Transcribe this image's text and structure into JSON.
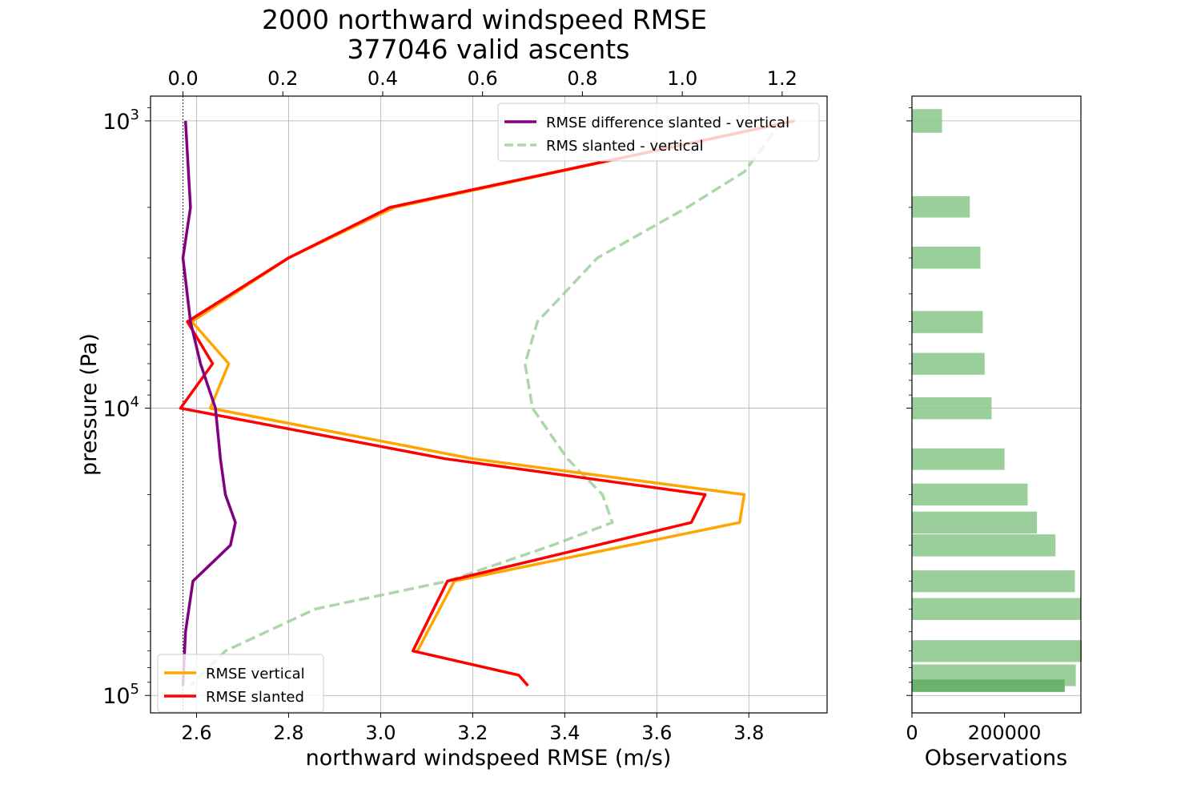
{
  "chart_data": [
    {
      "type": "line",
      "title": [
        "2000 northward windspeed RMSE",
        "377046 valid ascents"
      ],
      "xlabel": "northward windspeed RMSE (m/s)",
      "ylabel": "pressure (Pa)",
      "xlim": [
        2.5,
        3.97
      ],
      "xticks": [
        2.6,
        2.8,
        3.0,
        3.2,
        3.4,
        3.6,
        3.8
      ],
      "xtick_labels": [
        "2.6",
        "2.8",
        "3.0",
        "3.2",
        "3.4",
        "3.6",
        "3.8"
      ],
      "top_xlim": [
        -0.065,
        1.29
      ],
      "top_xticks": [
        0.0,
        0.2,
        0.4,
        0.6,
        0.8,
        1.0,
        1.2
      ],
      "top_xtick_labels": [
        "0.0",
        "0.2",
        "0.4",
        "0.6",
        "0.8",
        "1.0",
        "1.2"
      ],
      "ylim": [
        115000,
        820
      ],
      "yscale": "log",
      "yinvert": true,
      "yticks": [
        1000,
        10000,
        100000
      ],
      "ytick_labels": [
        {
          "base": "10",
          "exp": "3"
        },
        {
          "base": "10",
          "exp": "4"
        },
        {
          "base": "10",
          "exp": "5"
        }
      ],
      "grid": true,
      "zero_line_top_axis": 0.0,
      "series": [
        {
          "name": "RMSE vertical",
          "axis": "bottom",
          "color": "#ffa500",
          "style": "solid",
          "x": [
            3.895,
            3.03,
            2.8,
            2.59,
            2.67,
            2.63,
            3.2,
            3.79,
            3.78,
            3.16,
            3.08
          ],
          "y": [
            1000,
            2000,
            3000,
            5000,
            7000,
            10000,
            15000,
            20000,
            25000,
            40000,
            70000
          ]
        },
        {
          "name": "RMSE slanted",
          "axis": "bottom",
          "color": "#ff0000",
          "style": "solid",
          "x": [
            3.9,
            3.02,
            2.8,
            2.58,
            2.635,
            2.565,
            3.14,
            3.705,
            3.675,
            3.145,
            3.07,
            3.3,
            3.32
          ],
          "y": [
            1000,
            2000,
            3000,
            5000,
            7000,
            10000,
            15000,
            20000,
            25000,
            40000,
            70000,
            85000,
            92500
          ]
        },
        {
          "name": "RMSE difference slanted - vertical",
          "axis": "top",
          "color": "#800080",
          "style": "solid",
          "x": [
            0.005,
            0.015,
            0.0,
            0.015,
            0.035,
            0.065,
            0.075,
            0.085,
            0.105,
            0.095,
            0.02,
            0.005,
            0.0
          ],
          "y": [
            1000,
            2000,
            3000,
            5000,
            7000,
            10000,
            15000,
            20000,
            25000,
            30000,
            40000,
            60000,
            92500
          ]
        },
        {
          "name": "RMS slanted - vertical",
          "axis": "top",
          "color": "#8fc98f",
          "style": "dashed",
          "x": [
            1.2,
            1.125,
            1.01,
            0.83,
            0.71,
            0.685,
            0.7,
            0.77,
            0.84,
            0.86,
            0.74,
            0.53,
            0.265,
            0.085,
            0.015
          ],
          "y": [
            1000,
            1500,
            2000,
            3000,
            5000,
            7000,
            10000,
            15000,
            20000,
            25000,
            30000,
            40000,
            50000,
            70000,
            92500
          ]
        }
      ],
      "legends": [
        {
          "placement": "upper-right",
          "entries": [
            "RMSE difference slanted - vertical",
            "RMS slanted - vertical"
          ]
        },
        {
          "placement": "lower-left",
          "entries": [
            "RMSE vertical",
            "RMSE slanted"
          ]
        }
      ]
    },
    {
      "type": "bar",
      "orientation": "horizontal",
      "xlabel": "Observations",
      "xlim": [
        0,
        365000
      ],
      "xticks": [
        0,
        200000
      ],
      "xtick_labels": [
        "0",
        "200000"
      ],
      "yscale": "log",
      "ylim": [
        115000,
        820
      ],
      "color": "#8fc98f",
      "bars": [
        {
          "y": 1000,
          "y_lo": 910,
          "y_hi": 1100,
          "value": 65000
        },
        {
          "y": 2000,
          "y_lo": 1830,
          "y_hi": 2170,
          "value": 125000
        },
        {
          "y": 3000,
          "y_lo": 2740,
          "y_hi": 3270,
          "value": 148000
        },
        {
          "y": 5000,
          "y_lo": 4590,
          "y_hi": 5480,
          "value": 153000
        },
        {
          "y": 7000,
          "y_lo": 6420,
          "y_hi": 7650,
          "value": 157000
        },
        {
          "y": 10000,
          "y_lo": 9170,
          "y_hi": 10930,
          "value": 172000
        },
        {
          "y": 15000,
          "y_lo": 13800,
          "y_hi": 16400,
          "value": 200000
        },
        {
          "y": 20000,
          "y_lo": 18300,
          "y_hi": 21800,
          "value": 250000
        },
        {
          "y": 25000,
          "y_lo": 22900,
          "y_hi": 27300,
          "value": 270000
        },
        {
          "y": 30000,
          "y_lo": 27500,
          "y_hi": 32800,
          "value": 310000
        },
        {
          "y": 40000,
          "y_lo": 36700,
          "y_hi": 43700,
          "value": 352000
        },
        {
          "y": 50000,
          "y_lo": 45800,
          "y_hi": 54600,
          "value": 365000
        },
        {
          "y": 70000,
          "y_lo": 64200,
          "y_hi": 76500,
          "value": 367000
        },
        {
          "y": 85000,
          "y_lo": 78000,
          "y_hi": 92800,
          "value": 354000
        },
        {
          "y": 92500,
          "y_lo": 88000,
          "y_hi": 97200,
          "value": 330000,
          "highlight": true
        }
      ]
    }
  ]
}
